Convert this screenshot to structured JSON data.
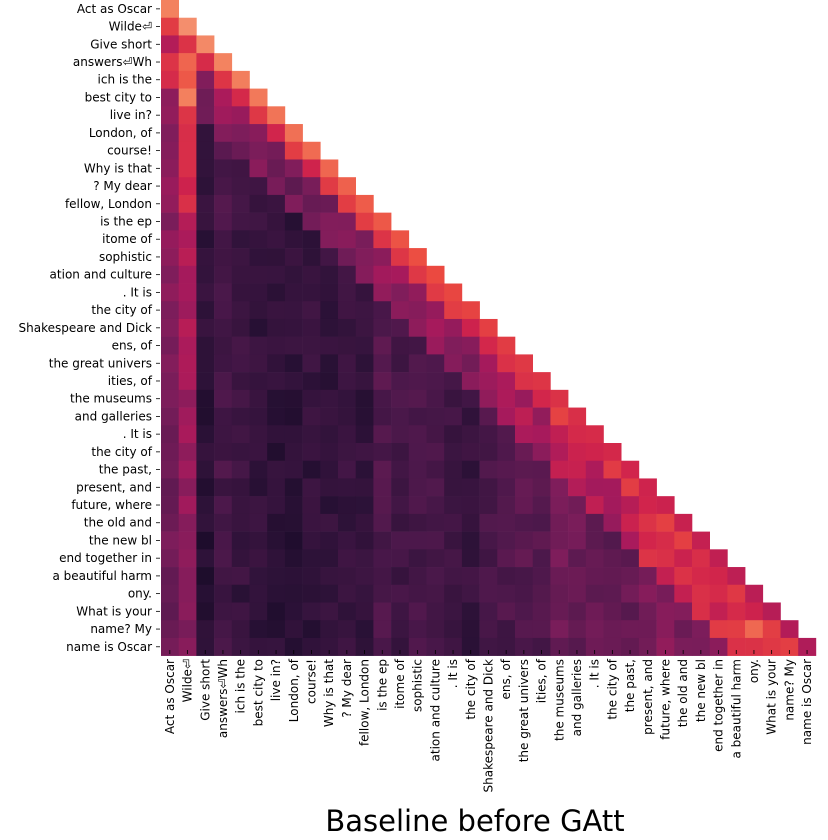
{
  "chart_data": {
    "type": "heatmap",
    "title": "Baseline before GAtt",
    "mask": "upper-triangle",
    "colormap": "rocket",
    "value_range": [
      0,
      1
    ],
    "labels": [
      "Act as Oscar",
      "Wilde⏎",
      "Give short",
      "answers⏎Wh",
      "ich is the",
      "best city to",
      "live in?",
      "London, of",
      "course!",
      "Why is that",
      "? My dear",
      "fellow, London",
      "is the ep",
      "itome of",
      "sophistic",
      "ation and culture",
      ". It is",
      "the city of",
      "Shakespeare and Dick",
      "ens, of",
      "the great univers",
      "ities, of",
      "the museums",
      "and galleries",
      ". It is",
      "the city of",
      "the past,",
      "present, and",
      "future, where",
      "the old and",
      "the new bl",
      "end together in",
      "a beautiful harm",
      "ony.",
      "What is your",
      "name? My",
      "name is Oscar"
    ],
    "col_profile": [
      0.42,
      0.55,
      0.1,
      0.22,
      0.16,
      0.12,
      0.1,
      0.1,
      0.12,
      0.12,
      0.14,
      0.12,
      0.24,
      0.2,
      0.22,
      0.2,
      0.16,
      0.14,
      0.2,
      0.22,
      0.26,
      0.24,
      0.34,
      0.32,
      0.3,
      0.28,
      0.3,
      0.36,
      0.4,
      0.36,
      0.38,
      0.4,
      0.44,
      0.48,
      0.5,
      0.55,
      0.6
    ]
  }
}
